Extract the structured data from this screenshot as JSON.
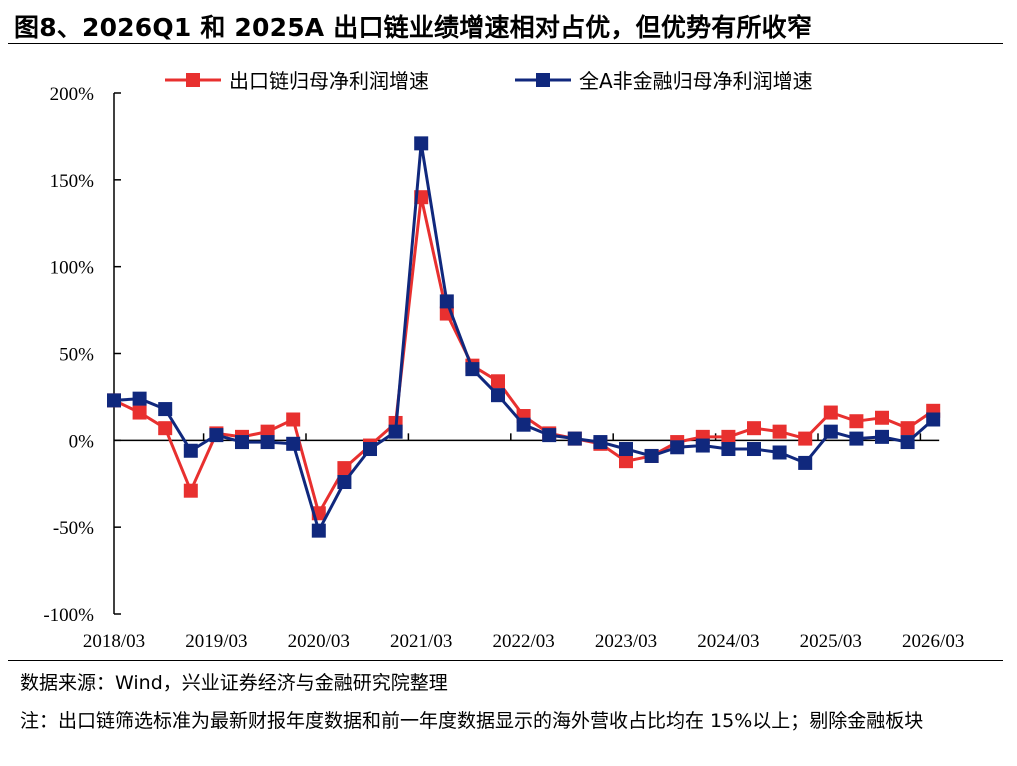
{
  "title": "图8、2026Q1 和 2025A 出口链业绩增速相对占优，但优势有所收窄",
  "source": "数据来源：Wind，兴业证券经济与金融研究院整理",
  "note": "注：出口链筛选标准为最新财报年度数据和前一年度数据显示的海外营收占比均在  15%以上；剔除金融板块",
  "chart_data": {
    "type": "line",
    "xlabel": "",
    "ylabel": "",
    "x_tick_labels": [
      "2018/03",
      "2019/03",
      "2020/03",
      "2021/03",
      "2022/03",
      "2023/03",
      "2024/03",
      "2025/03",
      "2026/03"
    ],
    "y_ticks": [
      -100,
      -50,
      0,
      50,
      100,
      150,
      200
    ],
    "y_tick_labels": [
      "-100%",
      "-50%",
      "0%",
      "50%",
      "100%",
      "150%",
      "200%"
    ],
    "ylim": [
      -100,
      200
    ],
    "unit": "%",
    "grid": false,
    "legend_position": "top",
    "x": [
      "2018/03",
      "2018/06",
      "2018/09",
      "2018/12",
      "2019/03",
      "2019/06",
      "2019/09",
      "2019/12",
      "2020/03",
      "2020/06",
      "2020/09",
      "2020/12",
      "2021/03",
      "2021/06",
      "2021/09",
      "2021/12",
      "2022/03",
      "2022/06",
      "2022/09",
      "2022/12",
      "2023/03",
      "2023/06",
      "2023/09",
      "2023/12",
      "2024/03",
      "2024/06",
      "2024/09",
      "2024/12",
      "2025/03",
      "2025/06",
      "2025/09",
      "2025/12",
      "2026/03"
    ],
    "series": [
      {
        "name": "出口链归母净利润增速",
        "color": "#e8302f",
        "marker": "square",
        "values": [
          23,
          16,
          7,
          -29,
          4,
          2,
          5,
          12,
          -42,
          -16,
          -3,
          10,
          140,
          73,
          43,
          34,
          14,
          4,
          1,
          -2,
          -12,
          -9,
          -1,
          2,
          2,
          7,
          5,
          1,
          16,
          11,
          13,
          7,
          17
        ]
      },
      {
        "name": "全A非金融归母净利润增速",
        "color": "#10287d",
        "marker": "square",
        "values": [
          23,
          24,
          18,
          -6,
          3,
          -1,
          -1,
          -2,
          -52,
          -24,
          -5,
          5,
          171,
          80,
          41,
          26,
          9,
          3,
          1,
          -1,
          -5,
          -9,
          -4,
          -3,
          -5,
          -5,
          -7,
          -13,
          5,
          1,
          2,
          -1,
          12
        ]
      }
    ]
  }
}
